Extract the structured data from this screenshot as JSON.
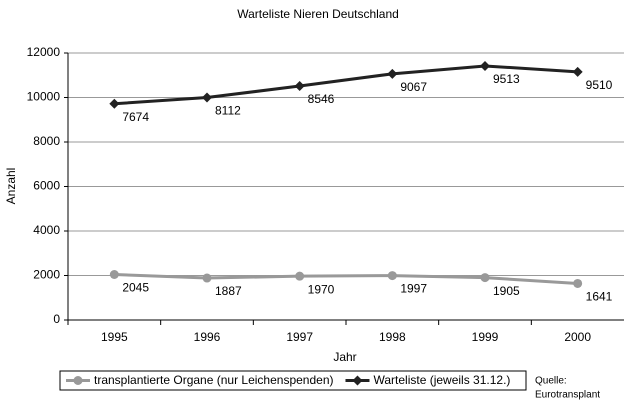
{
  "chart_data": {
    "type": "line",
    "stacked": true,
    "title": "Warteliste Nieren Deutschland",
    "x_label": "Jahr",
    "y_label": "Anzahl",
    "categories": [
      "1995",
      "1996",
      "1997",
      "1998",
      "1999",
      "2000"
    ],
    "series": [
      {
        "name": "transplantierte Organe (nur Leichenspenden)",
        "color": "#999999",
        "marker": "circle",
        "values": [
          2045,
          1887,
          1970,
          1997,
          1905,
          1641
        ]
      },
      {
        "name": "Warteliste (jeweils 31.12.)",
        "color": "#222222",
        "marker": "diamond",
        "values": [
          7674,
          8112,
          8546,
          9067,
          9513,
          9510
        ]
      }
    ],
    "ylim": [
      0,
      12000
    ],
    "yticks": [
      0,
      2000,
      4000,
      6000,
      8000,
      10000,
      12000
    ],
    "grid": true,
    "legend": "bottom",
    "source": [
      "Quelle:",
      "Eurotransplant"
    ]
  }
}
